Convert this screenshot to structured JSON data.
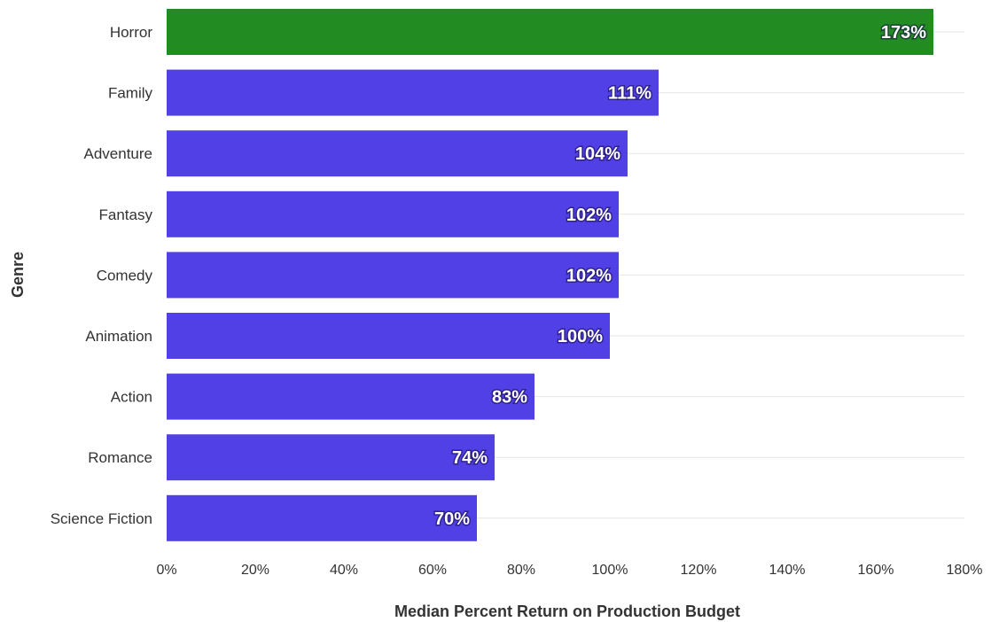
{
  "chart_data": {
    "type": "bar",
    "orientation": "horizontal",
    "categories": [
      "Horror",
      "Family",
      "Adventure",
      "Fantasy",
      "Comedy",
      "Animation",
      "Action",
      "Romance",
      "Science Fiction"
    ],
    "values": [
      173,
      111,
      104,
      102,
      102,
      100,
      83,
      74,
      70
    ],
    "value_labels": [
      "173%",
      "111%",
      "104%",
      "102%",
      "102%",
      "100%",
      "83%",
      "74%",
      "70%"
    ],
    "highlight_index": 0,
    "colors": {
      "highlight": "#228B22",
      "bar": "#5040E6"
    },
    "xlabel": "Median Percent Return on Production Budget",
    "ylabel": "Genre",
    "xlim": [
      0,
      180
    ],
    "xticks": [
      0,
      20,
      40,
      60,
      80,
      100,
      120,
      140,
      160,
      180
    ],
    "xtick_labels": [
      "0%",
      "20%",
      "40%",
      "60%",
      "80%",
      "100%",
      "120%",
      "140%",
      "160%",
      "180%"
    ],
    "grid": true,
    "legend": "none"
  }
}
